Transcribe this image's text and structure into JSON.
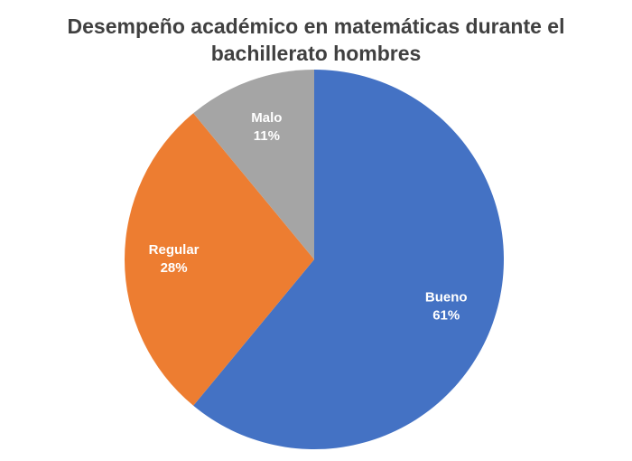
{
  "chart_data": {
    "type": "pie",
    "title": "Desempeño académico en matemáticas durante el bachillerato hombres",
    "categories": [
      "Bueno",
      "Regular",
      "Malo"
    ],
    "values": [
      61,
      28,
      11
    ],
    "value_labels": [
      "61%",
      "28%",
      "11%"
    ],
    "colors": [
      "#4472c4",
      "#ed7d31",
      "#a5a5a5"
    ]
  }
}
